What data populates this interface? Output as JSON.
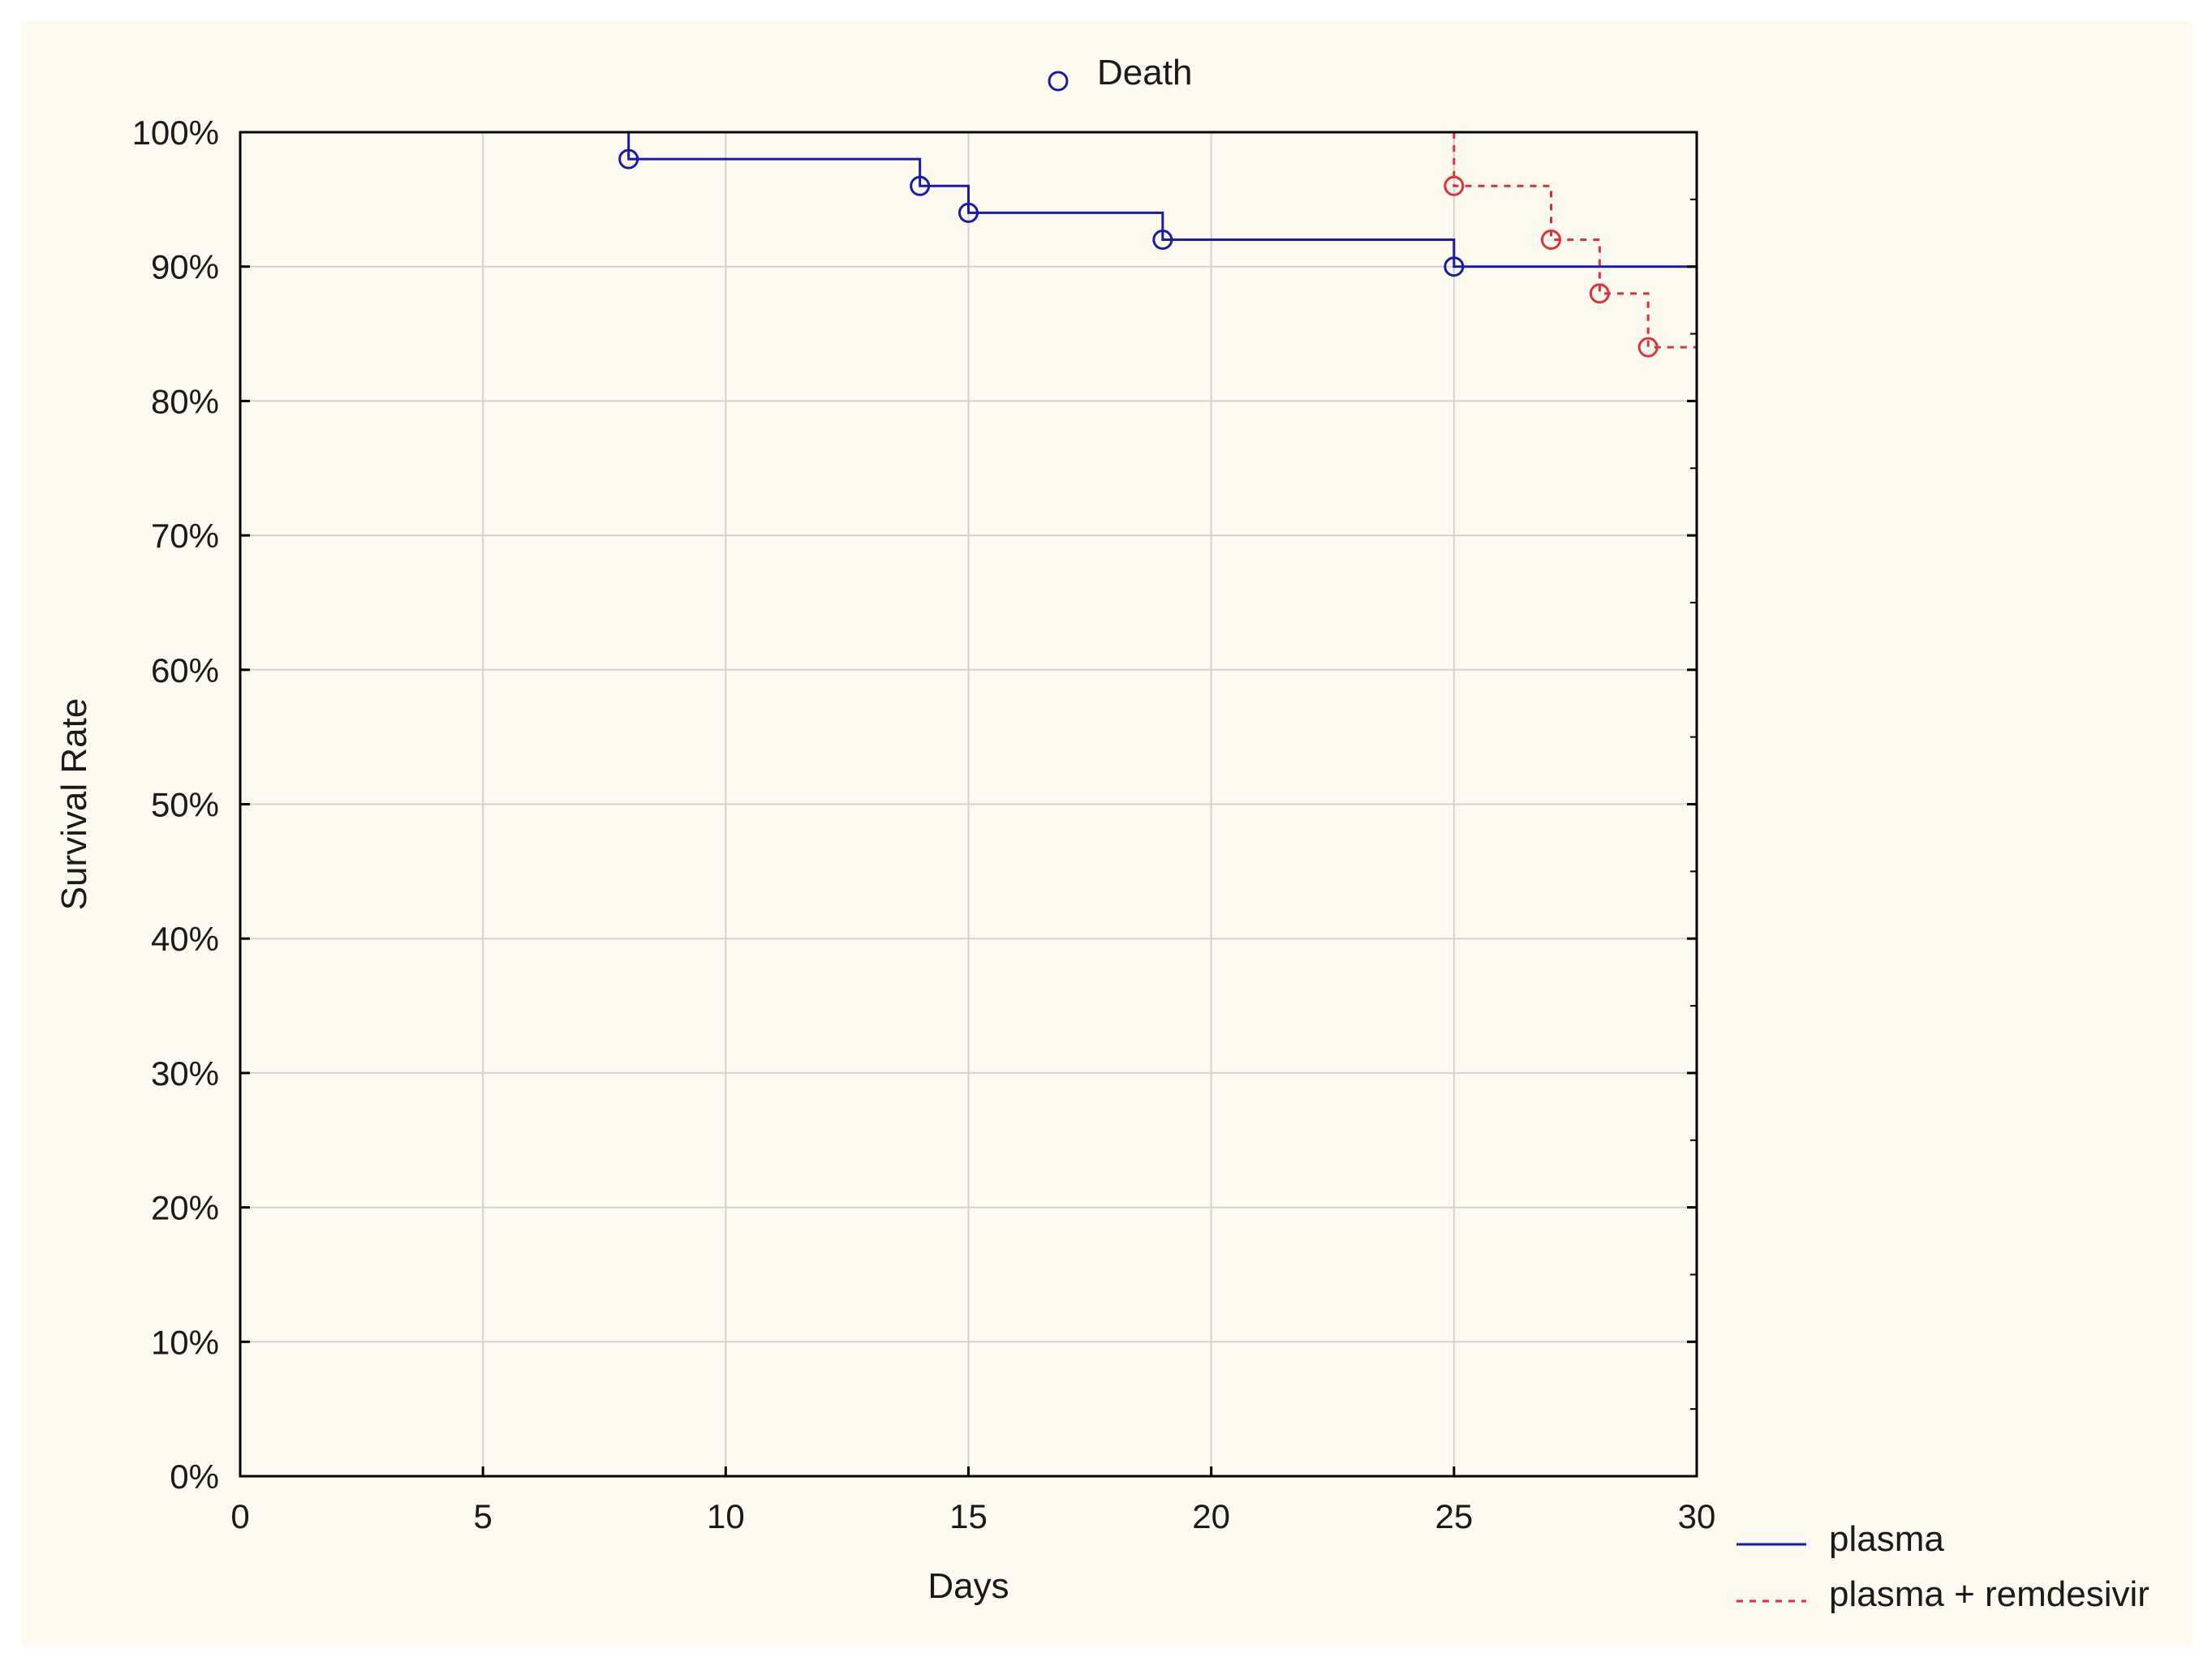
{
  "chart_data": {
    "type": "line",
    "title": "",
    "xlabel": "Days",
    "ylabel": "Survival Rate",
    "xlim": [
      0,
      30
    ],
    "ylim": [
      0,
      100
    ],
    "x_ticks": [
      "0",
      "5",
      "10",
      "15",
      "20",
      "25",
      "30"
    ],
    "y_ticks": [
      "0%",
      "10%",
      "20%",
      "30%",
      "40%",
      "50%",
      "60%",
      "70%",
      "80%",
      "90%",
      "100%"
    ],
    "grid": true,
    "marker_legend": "Death",
    "legend_position": "bottom-right",
    "series": [
      {
        "name": "plasma",
        "color": "#1a1aa8",
        "line_style": "solid",
        "x": [
          0,
          8,
          14,
          15,
          19,
          25,
          30
        ],
        "y": [
          100,
          98,
          96,
          94,
          92,
          90,
          90
        ],
        "death_markers": [
          {
            "x": 8,
            "y": 98
          },
          {
            "x": 14,
            "y": 96
          },
          {
            "x": 15,
            "y": 94
          },
          {
            "x": 19,
            "y": 92
          },
          {
            "x": 25,
            "y": 90
          }
        ]
      },
      {
        "name": "plasma + remdesivir",
        "color": "#e0303a",
        "line_style": "dashed",
        "x": [
          25,
          25,
          27,
          28,
          29,
          30
        ],
        "y": [
          100,
          96,
          92,
          88,
          84,
          84
        ],
        "death_markers": [
          {
            "x": 25,
            "y": 96
          },
          {
            "x": 27,
            "y": 92
          },
          {
            "x": 28,
            "y": 88
          },
          {
            "x": 29,
            "y": 84
          }
        ]
      }
    ]
  }
}
